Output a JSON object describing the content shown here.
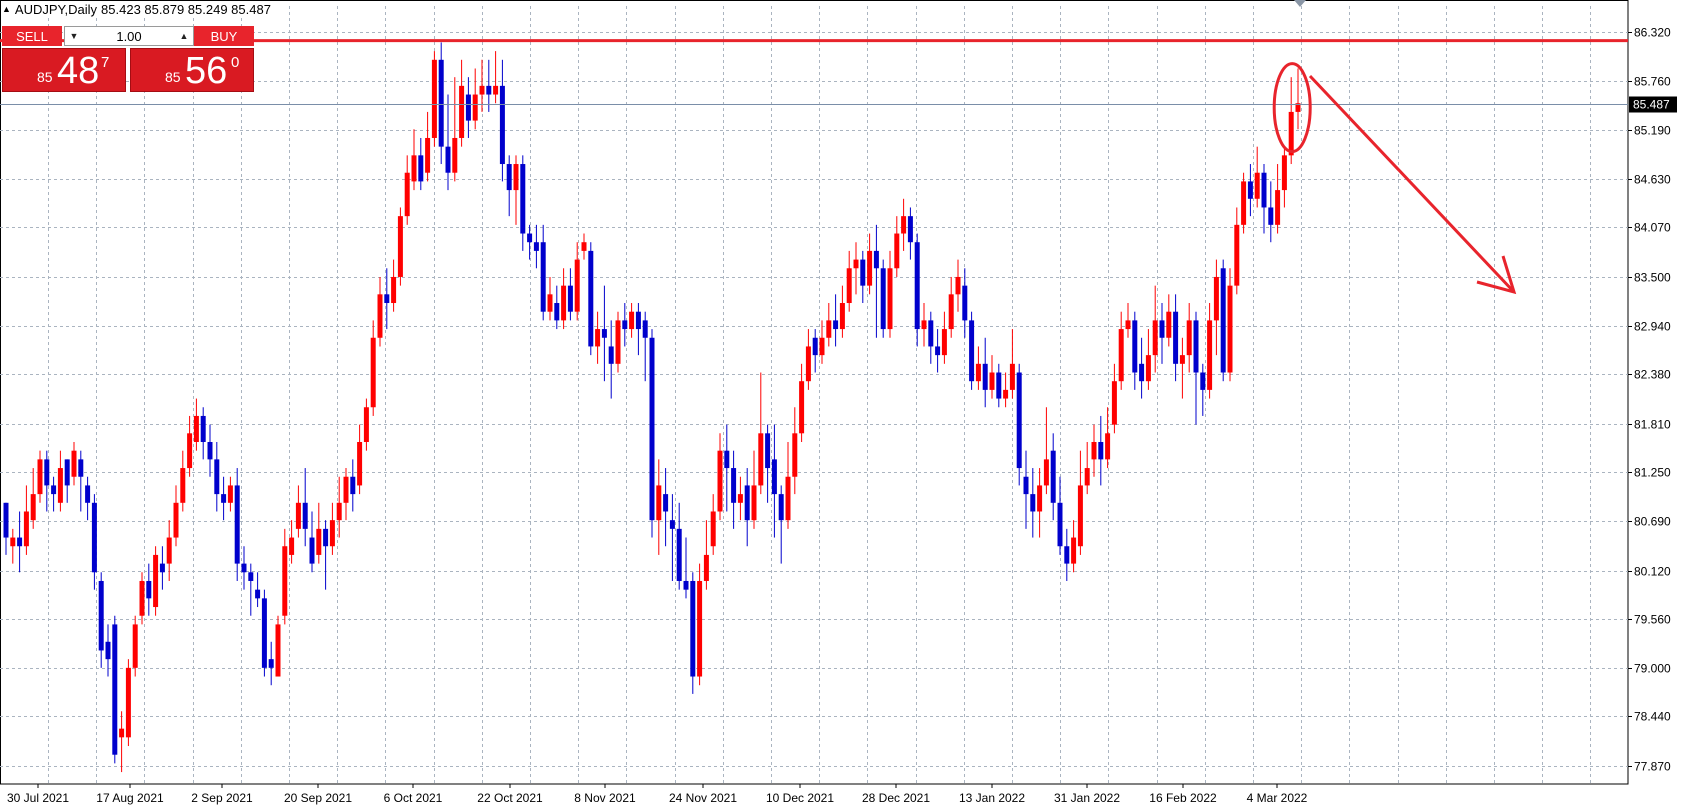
{
  "header": {
    "symbol": "AUDJPY,Daily",
    "ohlc": "85.423 85.879 85.249 85.487"
  },
  "trade_panel": {
    "sell_label": "SELL",
    "buy_label": "BUY",
    "lot_value": "1.00",
    "sell_price": {
      "prefix": "85",
      "big": "48",
      "sup": "7"
    },
    "buy_price": {
      "prefix": "85",
      "big": "56",
      "sup": "0"
    }
  },
  "colors": {
    "bull": "#ff0000",
    "bear": "#0000cc",
    "grid": "#aab4c0",
    "resistance": "#e8242c",
    "annotation": "#e8242c"
  },
  "chart_data": {
    "type": "candlestick",
    "title": "AUDJPY,Daily",
    "ylim": [
      77.6,
      86.5
    ],
    "y_ticks": [
      "86.320",
      "85.760",
      "85.190",
      "84.630",
      "84.070",
      "83.500",
      "82.940",
      "82.380",
      "81.810",
      "81.250",
      "80.690",
      "80.120",
      "79.560",
      "79.000",
      "78.440",
      "77.870"
    ],
    "x_ticks": [
      "30 Jul 2021",
      "17 Aug 2021",
      "2 Sep 2021",
      "20 Sep 2021",
      "6 Oct 2021",
      "22 Oct 2021",
      "8 Nov 2021",
      "24 Nov 2021",
      "10 Dec 2021",
      "28 Dec 2021",
      "13 Jan 2022",
      "31 Jan 2022",
      "16 Feb 2022",
      "4 Mar 2022"
    ],
    "current_price": "85.487",
    "resistance_level": 86.22,
    "grid": true,
    "candles": [
      [
        80.9,
        80.5,
        80.3,
        80.9
      ],
      [
        80.4,
        80.5,
        80.2,
        80.6
      ],
      [
        80.5,
        80.4,
        80.1,
        80.8
      ],
      [
        80.4,
        80.8,
        80.3,
        81.1
      ],
      [
        80.7,
        81.0,
        80.6,
        81.3
      ],
      [
        81.0,
        81.4,
        80.9,
        81.5
      ],
      [
        81.4,
        81.1,
        80.8,
        81.5
      ],
      [
        81.1,
        81.0,
        80.8,
        81.2
      ],
      [
        80.9,
        81.3,
        80.8,
        81.5
      ],
      [
        81.4,
        81.1,
        80.9,
        81.4
      ],
      [
        81.2,
        81.5,
        81.1,
        81.6
      ],
      [
        81.4,
        81.2,
        80.8,
        81.5
      ],
      [
        81.1,
        80.9,
        80.7,
        81.2
      ],
      [
        80.9,
        80.1,
        79.9,
        81.0
      ],
      [
        80.0,
        79.2,
        79.0,
        80.1
      ],
      [
        79.3,
        79.1,
        78.9,
        79.5
      ],
      [
        79.5,
        78.0,
        77.9,
        79.6
      ],
      [
        78.2,
        78.3,
        77.8,
        78.5
      ],
      [
        78.2,
        79.0,
        78.1,
        79.1
      ],
      [
        79.0,
        79.5,
        78.9,
        79.6
      ],
      [
        79.6,
        80.0,
        79.5,
        80.1
      ],
      [
        80.0,
        79.8,
        79.6,
        80.2
      ],
      [
        79.7,
        80.3,
        79.6,
        80.4
      ],
      [
        80.2,
        80.1,
        79.9,
        80.4
      ],
      [
        80.2,
        80.5,
        80.0,
        80.7
      ],
      [
        80.5,
        80.9,
        80.4,
        81.1
      ],
      [
        80.9,
        81.3,
        80.8,
        81.5
      ],
      [
        81.3,
        81.7,
        81.2,
        81.9
      ],
      [
        81.6,
        81.9,
        81.5,
        82.1
      ],
      [
        81.9,
        81.6,
        81.4,
        82.0
      ],
      [
        81.6,
        81.4,
        81.2,
        81.8
      ],
      [
        81.4,
        81.0,
        80.8,
        81.6
      ],
      [
        81.0,
        80.9,
        80.7,
        81.2
      ],
      [
        80.9,
        81.1,
        80.8,
        81.2
      ],
      [
        81.1,
        80.2,
        80.0,
        81.3
      ],
      [
        80.2,
        80.1,
        79.9,
        80.4
      ],
      [
        80.1,
        80.0,
        79.6,
        80.2
      ],
      [
        79.9,
        79.8,
        79.7,
        80.1
      ],
      [
        79.8,
        79.0,
        78.9,
        79.9
      ],
      [
        79.1,
        79.0,
        78.8,
        79.3
      ],
      [
        78.9,
        79.5,
        78.9,
        79.6
      ],
      [
        79.6,
        80.4,
        79.5,
        80.6
      ],
      [
        80.3,
        80.5,
        80.2,
        80.7
      ],
      [
        80.6,
        80.9,
        80.5,
        81.1
      ],
      [
        80.9,
        80.6,
        80.4,
        81.3
      ],
      [
        80.5,
        80.2,
        80.1,
        80.8
      ],
      [
        80.3,
        80.6,
        80.2,
        80.9
      ],
      [
        80.6,
        80.4,
        79.9,
        80.7
      ],
      [
        80.4,
        80.7,
        80.3,
        80.9
      ],
      [
        80.7,
        80.9,
        80.5,
        81.2
      ],
      [
        80.9,
        81.2,
        80.7,
        81.3
      ],
      [
        81.2,
        81.0,
        80.8,
        81.4
      ],
      [
        81.1,
        81.6,
        81.0,
        81.8
      ],
      [
        81.6,
        82.0,
        81.5,
        82.1
      ],
      [
        82.0,
        82.8,
        81.9,
        83.0
      ],
      [
        82.8,
        83.3,
        82.7,
        83.5
      ],
      [
        83.3,
        83.2,
        82.9,
        83.6
      ],
      [
        83.2,
        83.5,
        83.1,
        83.7
      ],
      [
        83.5,
        84.2,
        83.4,
        84.3
      ],
      [
        84.2,
        84.7,
        84.1,
        84.9
      ],
      [
        84.6,
        84.9,
        84.5,
        85.2
      ],
      [
        84.9,
        84.6,
        84.5,
        85.1
      ],
      [
        84.7,
        85.1,
        84.6,
        85.4
      ],
      [
        85.1,
        86.0,
        85.0,
        86.1
      ],
      [
        86.0,
        85.0,
        84.8,
        86.2
      ],
      [
        85.0,
        84.7,
        84.5,
        85.6
      ],
      [
        84.7,
        85.1,
        84.6,
        85.8
      ],
      [
        85.1,
        85.7,
        85.0,
        86.0
      ],
      [
        85.6,
        85.3,
        85.1,
        85.8
      ],
      [
        85.3,
        85.6,
        85.2,
        85.9
      ],
      [
        85.6,
        85.7,
        85.4,
        86.0
      ],
      [
        85.7,
        85.6,
        85.4,
        86.0
      ],
      [
        85.6,
        85.7,
        85.5,
        86.1
      ],
      [
        85.7,
        84.8,
        84.6,
        86.0
      ],
      [
        84.8,
        84.5,
        84.2,
        84.9
      ],
      [
        84.5,
        84.8,
        84.1,
        84.9
      ],
      [
        84.8,
        84.0,
        83.8,
        84.9
      ],
      [
        84.0,
        83.9,
        83.7,
        84.1
      ],
      [
        83.9,
        83.8,
        83.6,
        84.1
      ],
      [
        83.9,
        83.1,
        83.0,
        84.1
      ],
      [
        83.1,
        83.3,
        83.0,
        83.5
      ],
      [
        83.2,
        83.0,
        82.9,
        83.4
      ],
      [
        83.0,
        83.4,
        82.9,
        83.6
      ],
      [
        83.4,
        83.1,
        83.0,
        83.6
      ],
      [
        83.1,
        83.7,
        83.0,
        83.9
      ],
      [
        83.8,
        83.9,
        83.7,
        84.0
      ],
      [
        83.8,
        82.7,
        82.6,
        83.9
      ],
      [
        82.7,
        82.9,
        82.5,
        83.1
      ],
      [
        82.9,
        82.8,
        82.3,
        83.4
      ],
      [
        82.7,
        82.5,
        82.1,
        83.0
      ],
      [
        82.5,
        83.0,
        82.4,
        83.1
      ],
      [
        83.0,
        82.9,
        82.7,
        83.2
      ],
      [
        82.9,
        83.1,
        82.8,
        83.2
      ],
      [
        83.1,
        82.9,
        82.6,
        83.2
      ],
      [
        83.0,
        82.8,
        82.3,
        83.1
      ],
      [
        82.8,
        80.7,
        80.5,
        82.9
      ],
      [
        80.7,
        81.1,
        80.3,
        81.4
      ],
      [
        81.0,
        80.8,
        80.4,
        81.3
      ],
      [
        80.7,
        80.6,
        80.0,
        81.0
      ],
      [
        80.6,
        80.0,
        79.9,
        80.9
      ],
      [
        80.0,
        79.9,
        79.8,
        80.5
      ],
      [
        80.0,
        78.9,
        78.7,
        80.1
      ],
      [
        78.9,
        80.0,
        78.8,
        80.2
      ],
      [
        80.0,
        80.3,
        79.9,
        80.7
      ],
      [
        80.4,
        80.8,
        80.3,
        81.0
      ],
      [
        80.8,
        81.5,
        80.7,
        81.7
      ],
      [
        81.5,
        81.3,
        80.8,
        81.8
      ],
      [
        81.3,
        80.9,
        80.6,
        81.5
      ],
      [
        80.9,
        81.0,
        80.7,
        81.2
      ],
      [
        81.1,
        80.7,
        80.4,
        81.3
      ],
      [
        80.7,
        81.1,
        80.6,
        81.5
      ],
      [
        81.1,
        81.7,
        81.0,
        82.4
      ],
      [
        81.7,
        81.3,
        80.9,
        81.8
      ],
      [
        81.4,
        81.0,
        80.5,
        81.8
      ],
      [
        81.0,
        80.7,
        80.2,
        81.1
      ],
      [
        80.7,
        81.2,
        80.6,
        81.6
      ],
      [
        81.2,
        81.7,
        81.0,
        82.0
      ],
      [
        81.7,
        82.3,
        81.6,
        82.5
      ],
      [
        82.3,
        82.7,
        82.2,
        82.9
      ],
      [
        82.8,
        82.6,
        82.4,
        82.9
      ],
      [
        82.6,
        82.8,
        82.5,
        83.0
      ],
      [
        82.8,
        83.0,
        82.7,
        83.2
      ],
      [
        83.0,
        82.9,
        82.7,
        83.3
      ],
      [
        82.9,
        83.2,
        82.8,
        83.4
      ],
      [
        83.2,
        83.6,
        83.1,
        83.8
      ],
      [
        83.6,
        83.7,
        83.3,
        83.9
      ],
      [
        83.7,
        83.4,
        83.2,
        83.8
      ],
      [
        83.4,
        83.8,
        83.3,
        84.0
      ],
      [
        83.8,
        83.6,
        82.8,
        84.1
      ],
      [
        83.6,
        82.9,
        82.8,
        83.7
      ],
      [
        82.9,
        83.6,
        82.8,
        83.8
      ],
      [
        83.6,
        84.0,
        83.5,
        84.2
      ],
      [
        84.0,
        84.2,
        83.8,
        84.4
      ],
      [
        84.2,
        83.9,
        83.7,
        84.3
      ],
      [
        83.9,
        82.9,
        82.7,
        84.0
      ],
      [
        82.9,
        83.0,
        82.7,
        83.2
      ],
      [
        83.0,
        82.7,
        82.5,
        83.1
      ],
      [
        82.7,
        82.6,
        82.4,
        82.9
      ],
      [
        82.6,
        82.9,
        82.5,
        83.1
      ],
      [
        82.9,
        83.3,
        82.8,
        83.5
      ],
      [
        83.3,
        83.5,
        83.1,
        83.7
      ],
      [
        83.4,
        83.0,
        82.8,
        83.6
      ],
      [
        83.0,
        82.3,
        82.2,
        83.1
      ],
      [
        82.3,
        82.5,
        82.2,
        82.7
      ],
      [
        82.5,
        82.2,
        82.0,
        82.8
      ],
      [
        82.2,
        82.4,
        82.1,
        82.6
      ],
      [
        82.4,
        82.1,
        82.0,
        82.5
      ],
      [
        82.1,
        82.2,
        82.0,
        82.4
      ],
      [
        82.2,
        82.5,
        82.1,
        82.9
      ],
      [
        82.4,
        81.3,
        81.1,
        82.5
      ],
      [
        81.2,
        81.0,
        80.6,
        81.5
      ],
      [
        81.0,
        80.8,
        80.5,
        81.3
      ],
      [
        80.8,
        81.1,
        80.5,
        81.3
      ],
      [
        81.1,
        81.4,
        81.0,
        82.0
      ],
      [
        81.5,
        80.9,
        80.7,
        81.7
      ],
      [
        80.9,
        80.4,
        80.3,
        81.2
      ],
      [
        80.4,
        80.2,
        80.0,
        80.6
      ],
      [
        80.2,
        80.5,
        80.1,
        80.7
      ],
      [
        80.4,
        81.1,
        80.3,
        81.5
      ],
      [
        81.1,
        81.3,
        81.0,
        81.6
      ],
      [
        81.4,
        81.6,
        81.2,
        81.8
      ],
      [
        81.6,
        81.4,
        81.1,
        81.9
      ],
      [
        81.4,
        81.7,
        81.3,
        82.0
      ],
      [
        81.8,
        82.3,
        81.7,
        82.5
      ],
      [
        82.3,
        82.9,
        82.2,
        83.1
      ],
      [
        82.9,
        83.0,
        82.8,
        83.2
      ],
      [
        83.0,
        82.4,
        82.2,
        83.1
      ],
      [
        82.5,
        82.3,
        82.1,
        82.8
      ],
      [
        82.3,
        82.6,
        82.2,
        82.9
      ],
      [
        82.6,
        83.0,
        82.4,
        83.4
      ],
      [
        83.0,
        82.8,
        82.5,
        83.2
      ],
      [
        82.8,
        83.1,
        82.7,
        83.3
      ],
      [
        83.1,
        82.5,
        82.3,
        83.3
      ],
      [
        82.5,
        82.6,
        82.1,
        82.8
      ],
      [
        82.6,
        83.0,
        82.4,
        83.2
      ],
      [
        83.0,
        82.4,
        81.8,
        83.1
      ],
      [
        82.4,
        82.2,
        81.9,
        82.5
      ],
      [
        82.2,
        83.0,
        82.1,
        83.2
      ],
      [
        83.0,
        83.5,
        82.6,
        83.7
      ],
      [
        83.6,
        82.4,
        82.3,
        83.7
      ],
      [
        82.4,
        83.4,
        82.3,
        83.6
      ],
      [
        83.4,
        84.1,
        83.3,
        84.3
      ],
      [
        84.1,
        84.6,
        84.0,
        84.7
      ],
      [
        84.6,
        84.4,
        84.2,
        84.8
      ],
      [
        84.4,
        84.7,
        84.3,
        85.0
      ],
      [
        84.7,
        84.3,
        84.0,
        84.8
      ],
      [
        84.3,
        84.1,
        83.9,
        84.6
      ],
      [
        84.1,
        84.5,
        84.0,
        84.8
      ],
      [
        84.5,
        84.9,
        84.3,
        85.0
      ],
      [
        84.9,
        85.4,
        84.8,
        85.8
      ],
      [
        85.4,
        85.5,
        85.2,
        85.9
      ]
    ]
  }
}
